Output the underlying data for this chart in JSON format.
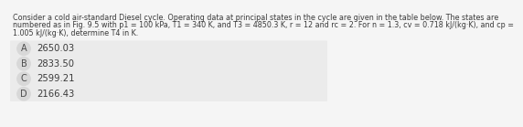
{
  "question_text_line1": "Consider a cold air-standard Diesel cycle. Operating data at principal states in the cycle are given in the table below. The states are",
  "question_text_line2": "numbered as in Fig. 9.5 with p1 = 100 kPa, T1 = 340 K, and T3 = 4850.3 K, r = 12 and rc = 2. For n = 1.3, cv = 0.718 kJ/(kg·K), and cp =",
  "question_text_line3": "1.005 kJ/(kg·K), determine T4 in K.",
  "options": [
    {
      "label": "A",
      "text": "2650.03"
    },
    {
      "label": "B",
      "text": "2833.50"
    },
    {
      "label": "C",
      "text": "2599.21"
    },
    {
      "label": "D",
      "text": "2166.43"
    }
  ],
  "bg_color": "#f5f5f5",
  "option_row_bg": "#ebebeb",
  "option_circle_color": "#d8d8d8",
  "text_color": "#3a3a3a",
  "circle_text_color": "#4a4a4a",
  "question_fontsize": 5.8,
  "option_fontsize": 7.2,
  "option_label_fontsize": 7.0
}
